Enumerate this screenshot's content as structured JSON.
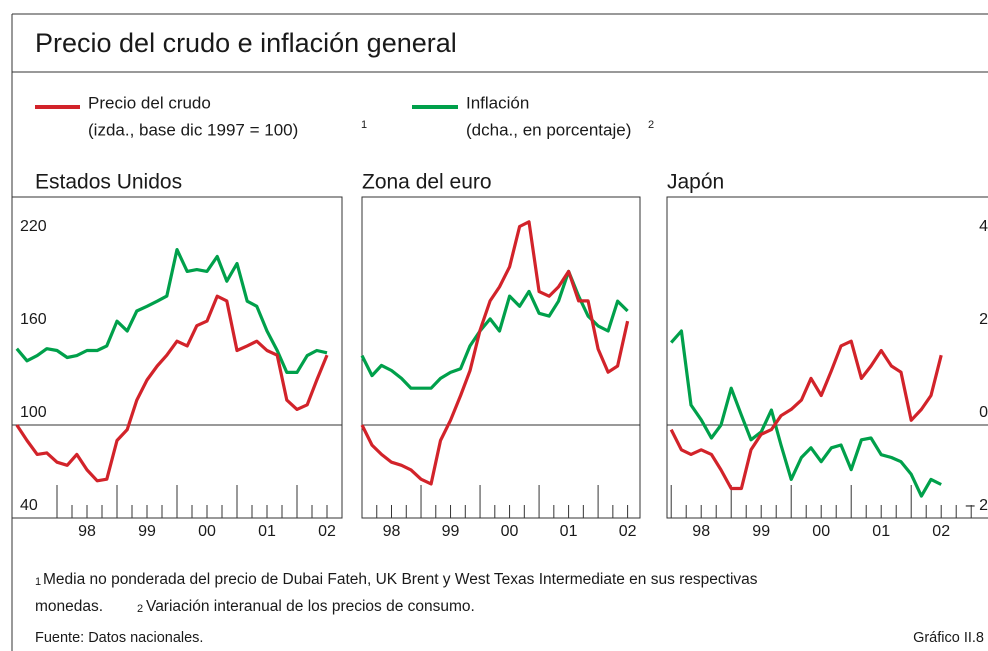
{
  "title": "Precio del crudo e inflación general",
  "legend": {
    "notes": [
      "(izda., base dic 1997 = 100)",
      "(dcha., en porcentaje)"
    ],
    "refs": [
      "1",
      "2"
    ]
  },
  "chart_data": [
    {
      "type": "line",
      "title": "Estados Unidos",
      "x": [
        1997.33,
        1997.5,
        1997.67,
        1997.83,
        1998.0,
        1998.17,
        1998.33,
        1998.5,
        1998.67,
        1998.83,
        1999.0,
        1999.17,
        1999.33,
        1999.5,
        1999.67,
        1999.83,
        2000.0,
        2000.17,
        2000.33,
        2000.5,
        2000.67,
        2000.83,
        2001.0,
        2001.17,
        2001.33,
        2001.5,
        2001.67,
        2001.83,
        2002.0,
        2002.17,
        2002.33,
        2002.5
      ],
      "xlim": [
        1997.25,
        2002.75
      ],
      "xticks": [
        {
          "value": 1998,
          "label": "98"
        },
        {
          "value": 1999,
          "label": "99"
        },
        {
          "value": 2000,
          "label": "00"
        },
        {
          "value": 2001,
          "label": "01"
        },
        {
          "value": 2002,
          "label": "02"
        }
      ],
      "ylim": [
        40,
        247
      ],
      "yticks": [
        40,
        100,
        160,
        220
      ],
      "y2lim": [
        -2,
        4.9
      ],
      "hline": 100,
      "series": [
        {
          "name": "Precio del crudo",
          "color": "#d2232a",
          "values": [
            100,
            90,
            81,
            82,
            76,
            74,
            81,
            71,
            64,
            65,
            90,
            97,
            116,
            129,
            138,
            145,
            154,
            151,
            164,
            167,
            183,
            180,
            148,
            151,
            154,
            148,
            145,
            116,
            110,
            113,
            129,
            145
          ]
        },
        {
          "name": "Inflación",
          "color": "#00a04b",
          "axis": "y2",
          "values": [
            1.64,
            1.38,
            1.49,
            1.64,
            1.6,
            1.45,
            1.49,
            1.6,
            1.6,
            1.7,
            2.23,
            2.02,
            2.45,
            2.55,
            2.66,
            2.77,
            3.77,
            3.3,
            3.34,
            3.3,
            3.62,
            3.09,
            3.47,
            2.66,
            2.55,
            2.02,
            1.6,
            1.13,
            1.13,
            1.49,
            1.6,
            1.55
          ]
        }
      ]
    },
    {
      "type": "line",
      "title": "Zona del euro",
      "x": [
        1998.0,
        1998.17,
        1998.33,
        1998.5,
        1998.67,
        1998.83,
        1999.0,
        1999.17,
        1999.33,
        1999.5,
        1999.67,
        1999.83,
        2000.0,
        2000.17,
        2000.33,
        2000.5,
        2000.67,
        2000.83,
        2001.0,
        2001.17,
        2001.33,
        2001.5,
        2001.67,
        2001.83,
        2002.0,
        2002.17,
        2002.33,
        2002.5
      ],
      "xlim": [
        1998.0,
        2002.71
      ],
      "xticks": [
        {
          "value": 1998,
          "label": "98"
        },
        {
          "value": 1999,
          "label": "99"
        },
        {
          "value": 2000,
          "label": "00"
        },
        {
          "value": 2001,
          "label": "01"
        },
        {
          "value": 2002,
          "label": "02"
        }
      ],
      "ylim": [
        40,
        247
      ],
      "y2lim": [
        -2,
        4.9
      ],
      "hline": 100,
      "series": [
        {
          "color": "#d2232a",
          "values": [
            100,
            87,
            81,
            76,
            74,
            71,
            65,
            62,
            90,
            103,
            119,
            135,
            161,
            180,
            189,
            202,
            228,
            231,
            186,
            183,
            189,
            199,
            180,
            180,
            149,
            134,
            138,
            167
          ]
        },
        {
          "color": "#00a04b",
          "axis": "y2",
          "values": [
            1.49,
            1.06,
            1.28,
            1.17,
            1.0,
            0.79,
            0.79,
            0.79,
            1.0,
            1.13,
            1.21,
            1.7,
            2.02,
            2.28,
            2.02,
            2.77,
            2.55,
            2.87,
            2.4,
            2.34,
            2.66,
            3.3,
            2.77,
            2.34,
            2.13,
            2.02,
            2.66,
            2.45
          ]
        }
      ]
    },
    {
      "type": "line",
      "title": "Japón",
      "x": [
        1998.0,
        1998.17,
        1998.33,
        1998.5,
        1998.67,
        1998.83,
        1999.0,
        1999.17,
        1999.33,
        1999.5,
        1999.67,
        1999.83,
        2000.0,
        2000.17,
        2000.33,
        2000.5,
        2000.67,
        2000.83,
        2001.0,
        2001.17,
        2001.33,
        2001.5,
        2001.67,
        2001.83,
        2002.0,
        2002.17,
        2002.33,
        2002.5
      ],
      "xlim": [
        1997.93,
        2003.48
      ],
      "xticks": [
        {
          "value": 1998,
          "label": "98"
        },
        {
          "value": 1999,
          "label": "99"
        },
        {
          "value": 2000,
          "label": "00"
        },
        {
          "value": 2001,
          "label": "01"
        },
        {
          "value": 2002,
          "label": "02"
        }
      ],
      "ylim": [
        40,
        247
      ],
      "y2lim": [
        -2,
        4.9
      ],
      "y2ticks": [
        {
          "value": -2,
          "label": "– 2"
        },
        0,
        2,
        4
      ],
      "hline": 100,
      "series": [
        {
          "color": "#d2232a",
          "values": [
            97,
            84,
            81,
            84,
            81,
            71,
            59,
            59,
            84,
            94,
            97,
            106,
            110,
            116,
            130,
            119,
            135,
            151,
            154,
            130,
            138,
            148,
            138,
            134,
            103,
            110,
            119,
            145
          ]
        },
        {
          "color": "#00a04b",
          "axis": "y2",
          "values": [
            1.77,
            2.02,
            0.43,
            0.11,
            -0.28,
            0,
            0.79,
            0.21,
            -0.32,
            -0.15,
            0.32,
            -0.43,
            -1.17,
            -0.7,
            -0.49,
            -0.79,
            -0.49,
            -0.43,
            -0.96,
            -0.32,
            -0.28,
            -0.64,
            -0.7,
            -0.79,
            -1.06,
            -1.53,
            -1.17,
            -1.28
          ]
        }
      ]
    }
  ],
  "footnotes": [
    {
      "ref": "1",
      "text": "Media no ponderada del precio de Dubai Fateh, UK Brent y West Texas Intermediate en sus respectivas"
    },
    {
      "text": "monedas."
    },
    {
      "ref": "2",
      "text": "Variación interanual de los precios de consumo."
    }
  ],
  "source": "Fuente: Datos nacionales.",
  "figure_label": "Gráfico II.8"
}
